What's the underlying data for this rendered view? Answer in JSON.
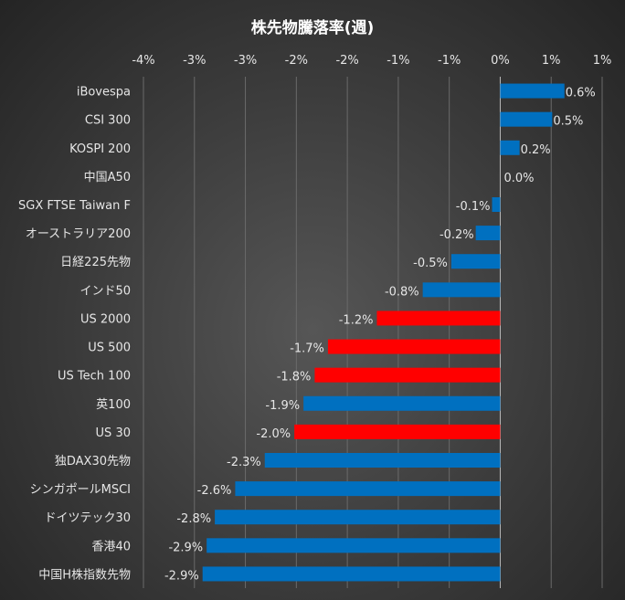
{
  "chart_data": {
    "type": "bar",
    "orientation": "horizontal",
    "title": "株先物騰落率(週)",
    "xlabel": "",
    "ylabel": "",
    "xlim": [
      -3.5,
      1.0
    ],
    "x_ticks": [
      -3.5,
      -3.0,
      -2.5,
      -2.0,
      -1.5,
      -1.0,
      -0.5,
      0,
      0.5,
      1.0
    ],
    "x_tick_labels": [
      "-4%",
      "-3%",
      "-3%",
      "-2%",
      "-2%",
      "-1%",
      "-1%",
      "0%",
      "1%",
      "1%"
    ],
    "grid": true,
    "legend": "none",
    "colors": {
      "default": "#0070c0",
      "highlight": "#ff0000"
    },
    "categories": [
      "iBovespa",
      "CSI 300",
      "KOSPI 200",
      "中国A50",
      "SGX FTSE Taiwan F",
      "オーストラリア200",
      "日経225先物",
      "インド50",
      "US 2000",
      "US 500",
      "US Tech 100",
      "英100",
      "US 30",
      "独DAX30先物",
      "シンガポールMSCI",
      "ドイツテック30",
      "香港40",
      "中国H株指数先物"
    ],
    "values": [
      0.63,
      0.51,
      0.19,
      0.0,
      -0.08,
      -0.24,
      -0.48,
      -0.76,
      -1.21,
      -1.69,
      -1.82,
      -1.93,
      -2.02,
      -2.31,
      -2.6,
      -2.8,
      -2.88,
      -2.92
    ],
    "data_labels": [
      "0.6%",
      "0.5%",
      "0.2%",
      "0.0%",
      "-0.1%",
      "-0.2%",
      "-0.5%",
      "-0.8%",
      "-1.2%",
      "-1.7%",
      "-1.8%",
      "-1.9%",
      "-2.0%",
      "-2.3%",
      "-2.6%",
      "-2.8%",
      "-2.9%",
      "-2.9%"
    ],
    "highlighted": [
      false,
      false,
      false,
      false,
      false,
      false,
      false,
      false,
      true,
      true,
      true,
      false,
      true,
      false,
      false,
      false,
      false,
      false
    ]
  }
}
